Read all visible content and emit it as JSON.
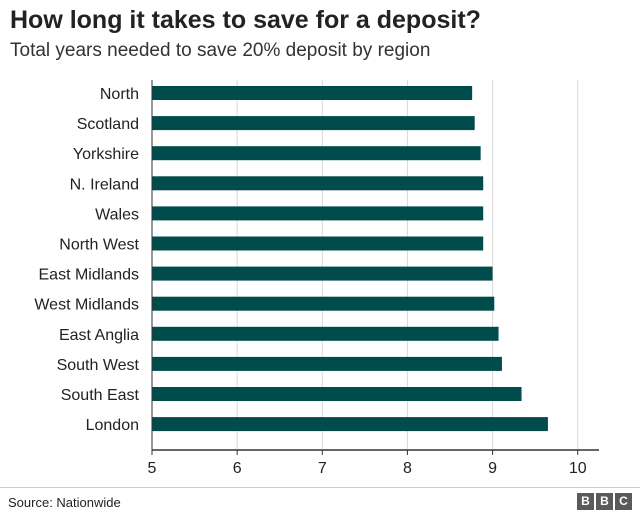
{
  "title": "How long it takes to save for a deposit?",
  "subtitle": "Total years needed to save 20% deposit by region",
  "source": "Source: Nationwide",
  "logo_letters": [
    "B",
    "B",
    "C"
  ],
  "colors": {
    "bar": "#004b4b",
    "grid": "#d9d9d9",
    "axis": "#333333",
    "text": "#222222"
  },
  "chart_data": {
    "type": "bar",
    "orientation": "horizontal",
    "title": "How long it takes to save for a deposit?",
    "subtitle": "Total years needed to save 20% deposit by region",
    "categories": [
      "North",
      "Scotland",
      "Yorkshire",
      "N. Ireland",
      "Wales",
      "North West",
      "East Midlands",
      "West Midlands",
      "East Anglia",
      "South West",
      "South East",
      "London"
    ],
    "values": [
      8.76,
      8.79,
      8.86,
      8.89,
      8.89,
      8.89,
      9.0,
      9.02,
      9.07,
      9.11,
      9.34,
      9.65
    ],
    "xlim": [
      5,
      10.25
    ],
    "xticks": [
      5,
      6,
      7,
      8,
      9,
      10
    ],
    "grid": "vertical",
    "legend": "none",
    "xlabel": "",
    "ylabel": ""
  }
}
